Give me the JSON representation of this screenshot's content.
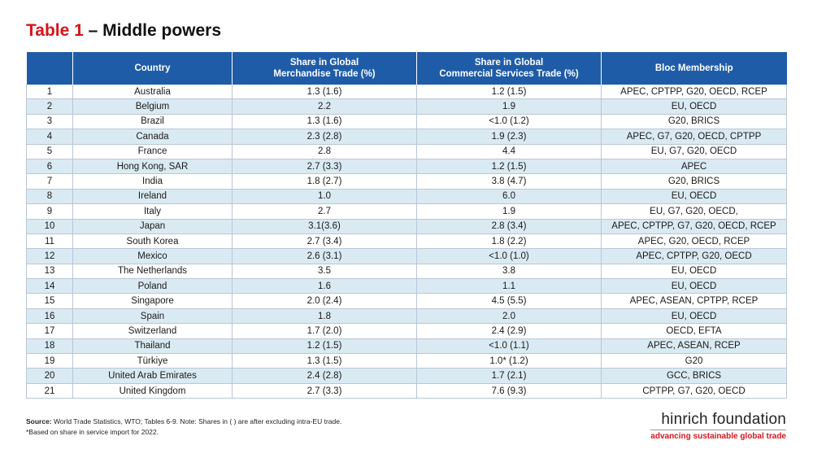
{
  "title": {
    "number": "Table 1",
    "text": " – Middle powers"
  },
  "table": {
    "headers": {
      "rank": "",
      "country": "Country",
      "merch_line1": "Share in Global",
      "merch_line2": "Merchandise Trade (%)",
      "services_line1": "Share in Global",
      "services_line2": "Commercial Services Trade (%)",
      "bloc": "Bloc Membership"
    },
    "rows": [
      {
        "rank": "1",
        "country": "Australia",
        "merch": "1.3 (1.6)",
        "services": "1.2 (1.5)",
        "bloc": "APEC, CPTPP, G20, OECD, RCEP"
      },
      {
        "rank": "2",
        "country": "Belgium",
        "merch": "2.2",
        "services": "1.9",
        "bloc": "EU, OECD"
      },
      {
        "rank": "3",
        "country": "Brazil",
        "merch": "1.3 (1.6)",
        "services": "<1.0 (1.2)",
        "bloc": "G20, BRICS"
      },
      {
        "rank": "4",
        "country": "Canada",
        "merch": "2.3 (2.8)",
        "services": "1.9 (2.3)",
        "bloc": "APEC, G7, G20, OECD, CPTPP"
      },
      {
        "rank": "5",
        "country": "France",
        "merch": "2.8",
        "services": "4.4",
        "bloc": "EU, G7, G20, OECD"
      },
      {
        "rank": "6",
        "country": "Hong Kong, SAR",
        "merch": "2.7 (3.3)",
        "services": "1.2 (1.5)",
        "bloc": "APEC"
      },
      {
        "rank": "7",
        "country": "India",
        "merch": "1.8 (2.7)",
        "services": "3.8 (4.7)",
        "bloc": "G20, BRICS"
      },
      {
        "rank": "8",
        "country": "Ireland",
        "merch": "1.0",
        "services": "6.0",
        "bloc": "EU, OECD"
      },
      {
        "rank": "9",
        "country": "Italy",
        "merch": "2.7",
        "services": "1.9",
        "bloc": "EU, G7, G20, OECD,"
      },
      {
        "rank": "10",
        "country": "Japan",
        "merch": "3.1(3.6)",
        "services": "2.8 (3.4)",
        "bloc": "APEC, CPTPP, G7, G20, OECD, RCEP"
      },
      {
        "rank": "11",
        "country": "South Korea",
        "merch": "2.7 (3.4)",
        "services": "1.8 (2.2)",
        "bloc": "APEC, G20, OECD, RCEP"
      },
      {
        "rank": "12",
        "country": "Mexico",
        "merch": "2.6 (3.1)",
        "services": "<1.0 (1.0)",
        "bloc": "APEC, CPTPP, G20, OECD"
      },
      {
        "rank": "13",
        "country": "The Netherlands",
        "merch": "3.5",
        "services": "3.8",
        "bloc": "EU, OECD"
      },
      {
        "rank": "14",
        "country": "Poland",
        "merch": "1.6",
        "services": "1.1",
        "bloc": "EU, OECD"
      },
      {
        "rank": "15",
        "country": "Singapore",
        "merch": "2.0 (2.4)",
        "services": "4.5 (5.5)",
        "bloc": "APEC, ASEAN, CPTPP, RCEP"
      },
      {
        "rank": "16",
        "country": "Spain",
        "merch": "1.8",
        "services": "2.0",
        "bloc": "EU, OECD"
      },
      {
        "rank": "17",
        "country": "Switzerland",
        "merch": "1.7 (2.0)",
        "services": "2.4 (2.9)",
        "bloc": "OECD, EFTA"
      },
      {
        "rank": "18",
        "country": "Thailand",
        "merch": "1.2 (1.5)",
        "services": "<1.0 (1.1)",
        "bloc": "APEC, ASEAN, RCEP"
      },
      {
        "rank": "19",
        "country": "Türkiye",
        "merch": "1.3 (1.5)",
        "services": "1.0* (1.2)",
        "bloc": "G20"
      },
      {
        "rank": "20",
        "country": "United Arab Emirates",
        "merch": "2.4 (2.8)",
        "services": "1.7 (2.1)",
        "bloc": "GCC, BRICS"
      },
      {
        "rank": "21",
        "country": "United Kingdom",
        "merch": "2.7 (3.3)",
        "services": "7.6 (9.3)",
        "bloc": "CPTPP, G7, G20, OECD"
      }
    ]
  },
  "footnotes": {
    "source_label": "Source:",
    "source_text": " World Trade Statistics, WTO; Tables 6-9. Note: Shares in ( ) are after excluding intra-EU trade.",
    "note": "*Based on share in service import for 2022."
  },
  "logo": {
    "name": "hinrich foundation",
    "tagline": "advancing sustainable global trade"
  },
  "colors": {
    "header_bg": "#1f5ca8",
    "stripe": "#daeaf2",
    "accent_red": "#d7141a"
  }
}
